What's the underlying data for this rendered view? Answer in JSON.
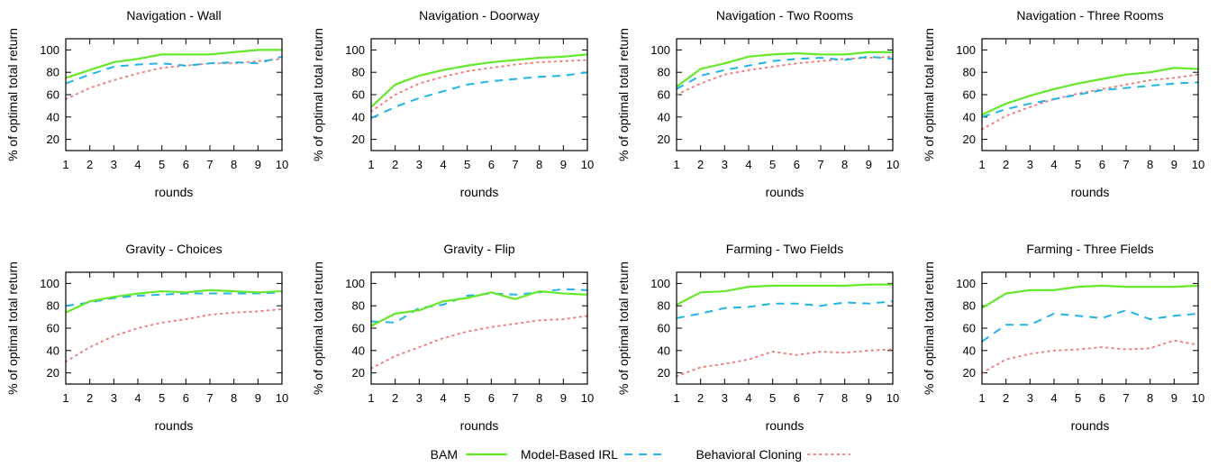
{
  "colors": {
    "BAM": "#66e82a",
    "Model-Based IRL": "#22b4e6",
    "Behavioral Cloning": "#f08080"
  },
  "legend": {
    "items": [
      "BAM",
      "Model-Based IRL",
      "Behavioral Cloning"
    ]
  },
  "chart_data": [
    {
      "type": "line",
      "title": "Navigation - Wall",
      "xlabel": "rounds",
      "ylabel": "% of optimal total return",
      "x": [
        1,
        2,
        3,
        4,
        5,
        6,
        7,
        8,
        9,
        10
      ],
      "xlim": [
        1,
        10
      ],
      "ylim": [
        10,
        110
      ],
      "yticks": [
        20,
        40,
        60,
        80,
        100
      ],
      "grid": false,
      "series": [
        {
          "name": "BAM",
          "values": [
            75,
            82,
            89,
            92,
            96,
            96,
            96,
            98,
            100,
            100
          ]
        },
        {
          "name": "Model-Based IRL",
          "values": [
            70,
            78,
            85,
            87,
            88,
            86,
            88,
            89,
            88,
            94
          ]
        },
        {
          "name": "Behavioral Cloning",
          "values": [
            56,
            66,
            73,
            79,
            84,
            86,
            88,
            88,
            90,
            92
          ]
        }
      ]
    },
    {
      "type": "line",
      "title": "Navigation - Doorway",
      "xlabel": "rounds",
      "ylabel": "% of optimal total return",
      "x": [
        1,
        2,
        3,
        4,
        5,
        6,
        7,
        8,
        9,
        10
      ],
      "xlim": [
        1,
        10
      ],
      "ylim": [
        10,
        110
      ],
      "yticks": [
        20,
        40,
        60,
        80,
        100
      ],
      "grid": false,
      "series": [
        {
          "name": "BAM",
          "values": [
            49,
            69,
            77,
            82,
            86,
            89,
            91,
            93,
            94,
            96
          ]
        },
        {
          "name": "Model-Based IRL",
          "values": [
            39,
            49,
            57,
            63,
            69,
            72,
            74,
            76,
            77,
            80
          ]
        },
        {
          "name": "Behavioral Cloning",
          "values": [
            45,
            60,
            70,
            76,
            81,
            84,
            87,
            89,
            90,
            91
          ]
        }
      ]
    },
    {
      "type": "line",
      "title": "Navigation - Two Rooms",
      "xlabel": "rounds",
      "ylabel": "% of optimal total return",
      "x": [
        1,
        2,
        3,
        4,
        5,
        6,
        7,
        8,
        9,
        10
      ],
      "xlim": [
        1,
        10
      ],
      "ylim": [
        10,
        110
      ],
      "yticks": [
        20,
        40,
        60,
        80,
        100
      ],
      "grid": false,
      "series": [
        {
          "name": "BAM",
          "values": [
            67,
            83,
            88,
            94,
            96,
            97,
            96,
            96,
            98,
            98
          ]
        },
        {
          "name": "Model-Based IRL",
          "values": [
            65,
            77,
            82,
            86,
            90,
            92,
            93,
            91,
            94,
            92
          ]
        },
        {
          "name": "Behavioral Cloning",
          "values": [
            60,
            70,
            78,
            82,
            85,
            88,
            90,
            92,
            93,
            94
          ]
        }
      ]
    },
    {
      "type": "line",
      "title": "Navigation - Three Rooms",
      "xlabel": "rounds",
      "ylabel": "% of optimal total return",
      "x": [
        1,
        2,
        3,
        4,
        5,
        6,
        7,
        8,
        9,
        10
      ],
      "xlim": [
        1,
        10
      ],
      "ylim": [
        10,
        110
      ],
      "yticks": [
        20,
        40,
        60,
        80,
        100
      ],
      "grid": false,
      "series": [
        {
          "name": "BAM",
          "values": [
            42,
            52,
            59,
            65,
            70,
            74,
            78,
            80,
            84,
            83
          ]
        },
        {
          "name": "Model-Based IRL",
          "values": [
            40,
            47,
            52,
            56,
            60,
            64,
            66,
            68,
            70,
            71
          ]
        },
        {
          "name": "Behavioral Cloning",
          "values": [
            29,
            41,
            49,
            56,
            61,
            65,
            69,
            73,
            75,
            78
          ]
        }
      ]
    },
    {
      "type": "line",
      "title": "Gravity - Choices",
      "xlabel": "rounds",
      "ylabel": "% of optimal total return",
      "x": [
        1,
        2,
        3,
        4,
        5,
        6,
        7,
        8,
        9,
        10
      ],
      "xlim": [
        1,
        10
      ],
      "ylim": [
        10,
        110
      ],
      "yticks": [
        20,
        40,
        60,
        80,
        100
      ],
      "grid": false,
      "series": [
        {
          "name": "BAM",
          "values": [
            74,
            84,
            88,
            91,
            93,
            92,
            94,
            93,
            92,
            93
          ]
        },
        {
          "name": "Model-Based IRL",
          "values": [
            80,
            83,
            87,
            89,
            90,
            91,
            91,
            91,
            91,
            92
          ]
        },
        {
          "name": "Behavioral Cloning",
          "values": [
            30,
            43,
            53,
            60,
            65,
            68,
            72,
            74,
            75,
            77
          ]
        }
      ]
    },
    {
      "type": "line",
      "title": "Gravity - Flip",
      "xlabel": "rounds",
      "ylabel": "% of optimal total return",
      "x": [
        1,
        2,
        3,
        4,
        5,
        6,
        7,
        8,
        9,
        10
      ],
      "xlim": [
        1,
        10
      ],
      "ylim": [
        10,
        110
      ],
      "yticks": [
        20,
        40,
        60,
        80,
        100
      ],
      "grid": false,
      "series": [
        {
          "name": "BAM",
          "values": [
            62,
            73,
            76,
            84,
            87,
            92,
            86,
            93,
            91,
            90
          ]
        },
        {
          "name": "Model-Based IRL",
          "values": [
            66,
            65,
            78,
            81,
            89,
            91,
            90,
            92,
            95,
            94
          ]
        },
        {
          "name": "Behavioral Cloning",
          "values": [
            24,
            35,
            43,
            51,
            57,
            61,
            64,
            67,
            68,
            71
          ]
        }
      ]
    },
    {
      "type": "line",
      "title": "Farming - Two Fields",
      "xlabel": "rounds",
      "ylabel": "% of optimal total return",
      "x": [
        1,
        2,
        3,
        4,
        5,
        6,
        7,
        8,
        9,
        10
      ],
      "xlim": [
        1,
        10
      ],
      "ylim": [
        10,
        110
      ],
      "yticks": [
        20,
        40,
        60,
        80,
        100
      ],
      "grid": false,
      "series": [
        {
          "name": "BAM",
          "values": [
            81,
            92,
            93,
            97,
            98,
            98,
            98,
            98,
            99,
            99
          ]
        },
        {
          "name": "Model-Based IRL",
          "values": [
            69,
            73,
            78,
            79,
            82,
            82,
            80,
            83,
            82,
            84
          ]
        },
        {
          "name": "Behavioral Cloning",
          "values": [
            17,
            25,
            28,
            32,
            39,
            36,
            39,
            38,
            40,
            41
          ]
        }
      ]
    },
    {
      "type": "line",
      "title": "Farming - Three Fields",
      "xlabel": "rounds",
      "ylabel": "% of optimal total return",
      "x": [
        1,
        2,
        3,
        4,
        5,
        6,
        7,
        8,
        9,
        10
      ],
      "xlim": [
        1,
        10
      ],
      "ylim": [
        10,
        110
      ],
      "yticks": [
        20,
        40,
        60,
        80,
        100
      ],
      "grid": false,
      "series": [
        {
          "name": "BAM",
          "values": [
            78,
            91,
            94,
            94,
            97,
            98,
            97,
            97,
            97,
            98
          ]
        },
        {
          "name": "Model-Based IRL",
          "values": [
            48,
            63,
            63,
            73,
            71,
            69,
            76,
            68,
            71,
            73
          ]
        },
        {
          "name": "Behavioral Cloning",
          "values": [
            20,
            32,
            37,
            40,
            41,
            43,
            41,
            42,
            49,
            45
          ]
        }
      ]
    }
  ]
}
